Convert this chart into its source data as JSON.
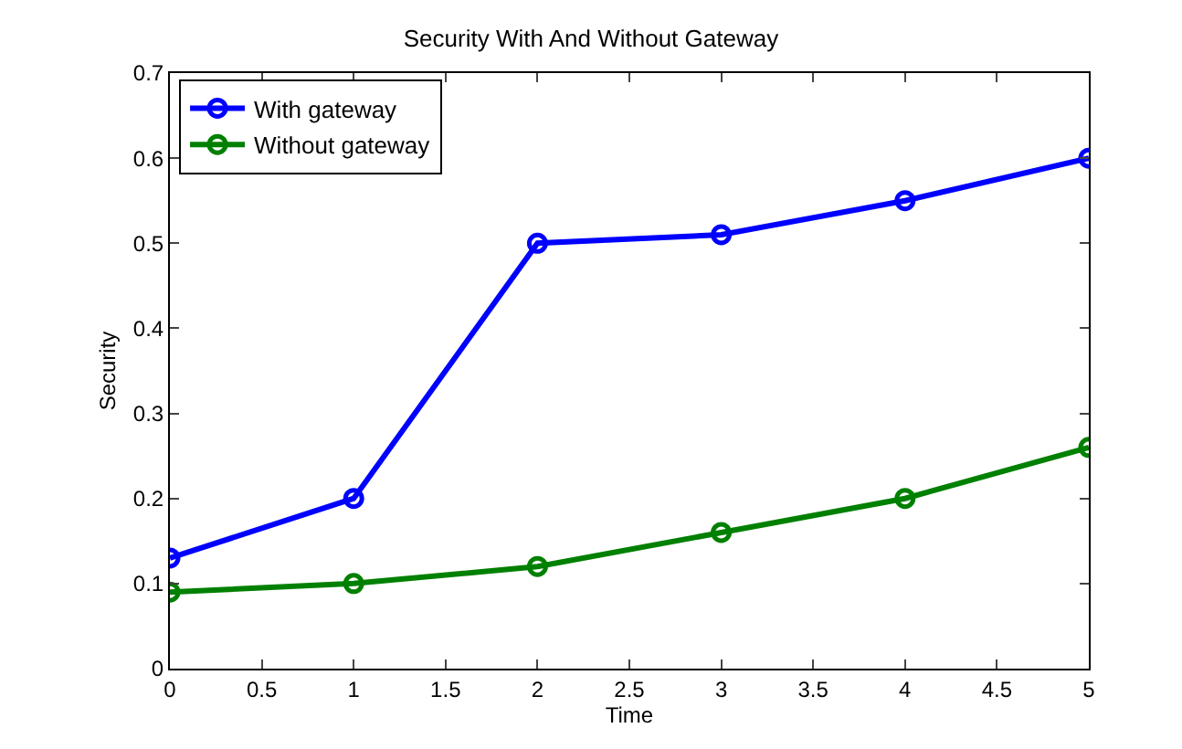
{
  "chart_data": {
    "type": "line",
    "title": "Security With And Without Gateway",
    "xlabel": "Time",
    "ylabel": "Security",
    "x": [
      0,
      1,
      2,
      3,
      4,
      5
    ],
    "series": [
      {
        "name": "With gateway",
        "color": "#0000ff",
        "values": [
          0.13,
          0.2,
          0.5,
          0.51,
          0.55,
          0.6
        ]
      },
      {
        "name": "Without gateway",
        "color": "#008000",
        "values": [
          0.09,
          0.1,
          0.12,
          0.16,
          0.2,
          0.26
        ]
      }
    ],
    "xlim": [
      0,
      5
    ],
    "xticks": [
      0,
      0.5,
      1,
      1.5,
      2,
      2.5,
      3,
      3.5,
      4,
      4.5,
      5
    ],
    "ylim": [
      0,
      0.7
    ],
    "yticks": [
      0,
      0.1,
      0.2,
      0.3,
      0.4,
      0.5,
      0.6,
      0.7
    ],
    "legend": "top left",
    "marker": "circle",
    "line_style": "solid"
  }
}
